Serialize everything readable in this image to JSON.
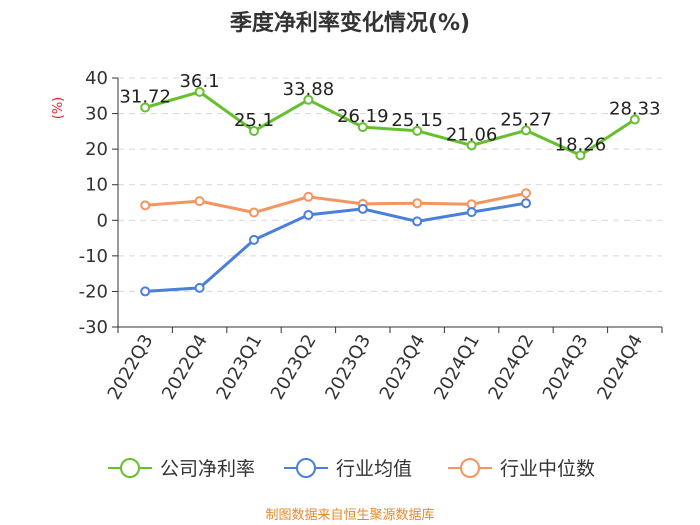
{
  "chart_data": {
    "type": "line",
    "title": "季度净利率变化情况(%)",
    "ylabel": "(%)",
    "xlabel": "",
    "ylim": [
      -30,
      40
    ],
    "yticks": [
      -30,
      -20,
      -10,
      0,
      10,
      20,
      30,
      40
    ],
    "grid": true,
    "legend_position": "bottom",
    "categories": [
      "2022Q3",
      "2022Q4",
      "2023Q1",
      "2023Q2",
      "2023Q3",
      "2023Q4",
      "2024Q1",
      "2024Q2",
      "2024Q3",
      "2024Q4"
    ],
    "series": [
      {
        "name": "公司净利率",
        "color": "#66c02e",
        "values": [
          31.72,
          36.1,
          25.1,
          33.88,
          26.19,
          25.15,
          21.06,
          25.27,
          18.26,
          28.33
        ],
        "labels": [
          "31.72",
          "36.1",
          "25.1",
          "33.88",
          "26.19",
          "25.15",
          "21.06",
          "25.27",
          "18.26",
          "28.33"
        ]
      },
      {
        "name": "行业均值",
        "color": "#4a7fdc",
        "values": [
          -20,
          -19,
          -5.5,
          1.5,
          3.2,
          -0.3,
          2.3,
          4.8,
          null,
          null
        ]
      },
      {
        "name": "行业中位数",
        "color": "#f69460",
        "values": [
          4.2,
          5.4,
          2.2,
          6.6,
          4.6,
          4.8,
          4.5,
          7.6,
          null,
          null
        ]
      }
    ],
    "source": "制图数据来自恒生聚源数据库"
  }
}
